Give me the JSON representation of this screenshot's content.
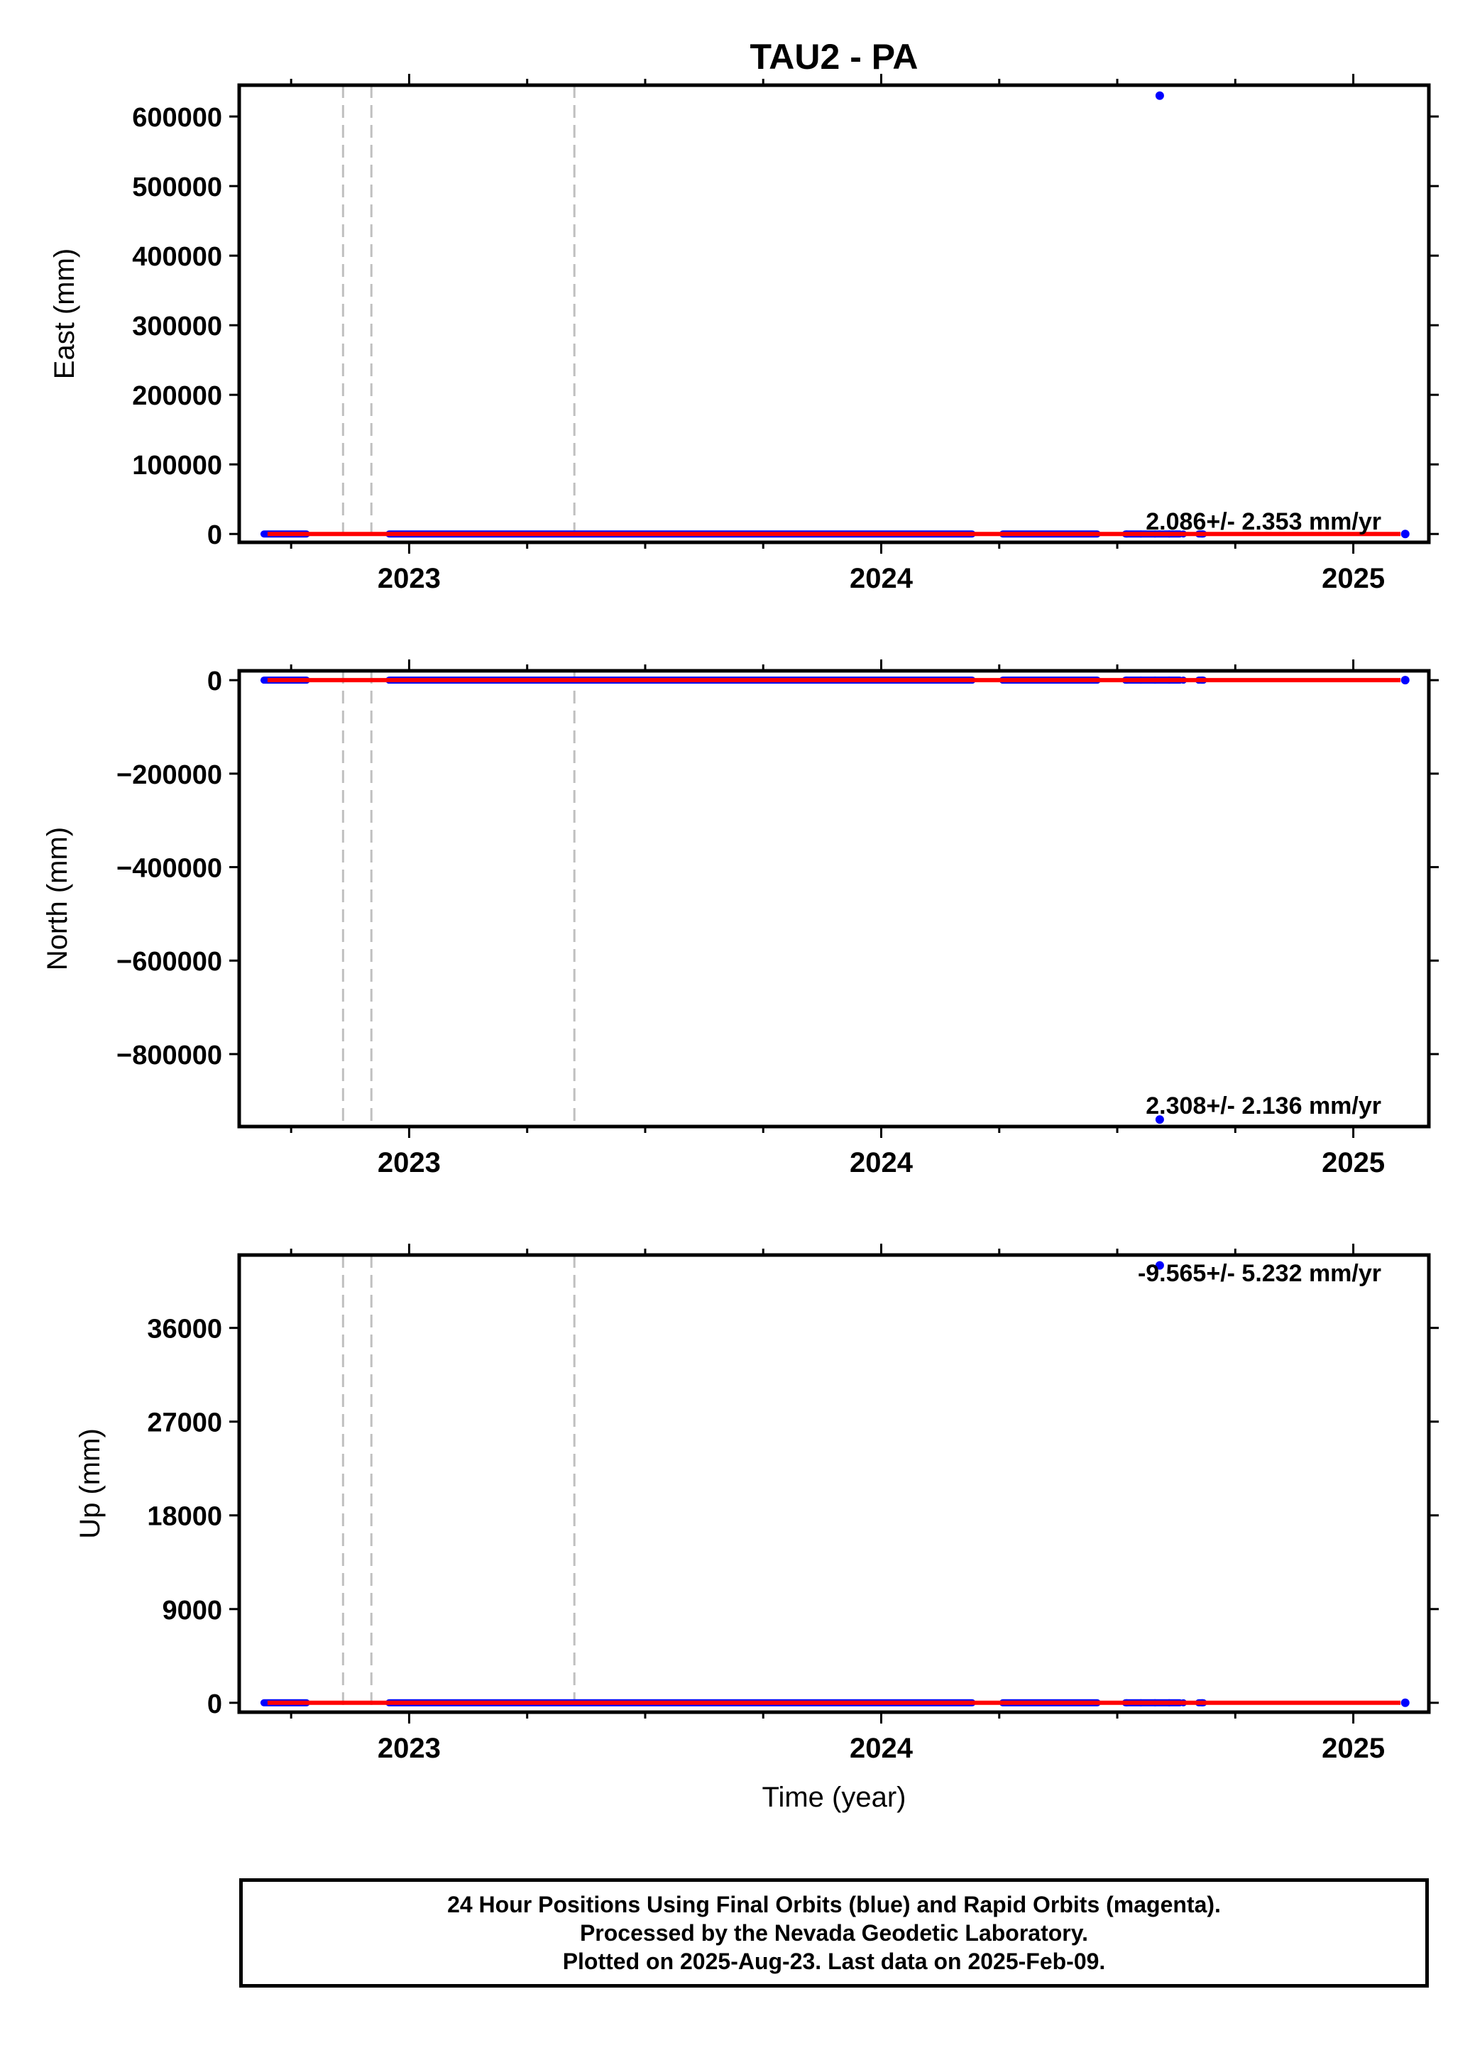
{
  "title": "TAU2 - PA",
  "xlabel": "Time (year)",
  "colors": {
    "final": "#0000ff",
    "rapid": "#ff00ff",
    "trend": "#ff0000",
    "event_line": "#c0c0c0"
  },
  "chart_data": [
    {
      "type": "scatter",
      "name": "east",
      "ylabel": "East (mm)",
      "xlim": [
        2022.64,
        2025.16
      ],
      "ylim": [
        -12000,
        645000
      ],
      "yticks": [
        0,
        100000,
        200000,
        300000,
        400000,
        500000,
        600000
      ],
      "ytick_labels": [
        "0",
        "100000",
        "200000",
        "300000",
        "400000",
        "500000",
        "600000"
      ],
      "xticks": [
        2023,
        2024,
        2025
      ],
      "xtick_labels": [
        "2023",
        "2024",
        "2025"
      ],
      "rate": "2.086+/- 2.353 mm/yr",
      "outliers": [
        {
          "x": 2024.59,
          "y": 630000
        }
      ],
      "trend": [
        [
          2022.7,
          0
        ],
        [
          2025.1,
          0
        ]
      ]
    },
    {
      "type": "scatter",
      "name": "north",
      "ylabel": "North (mm)",
      "xlim": [
        2022.64,
        2025.16
      ],
      "ylim": [
        -955000,
        20000
      ],
      "yticks": [
        -800000,
        -600000,
        -400000,
        -200000,
        0
      ],
      "ytick_labels": [
        "−800000",
        "−600000",
        "−400000",
        "−200000",
        "0"
      ],
      "xticks": [
        2023,
        2024,
        2025
      ],
      "xtick_labels": [
        "2023",
        "2024",
        "2025"
      ],
      "rate": "2.308+/- 2.136 mm/yr",
      "outliers": [
        {
          "x": 2024.59,
          "y": -940000
        }
      ],
      "trend": [
        [
          2022.7,
          0
        ],
        [
          2025.1,
          0
        ]
      ]
    },
    {
      "type": "scatter",
      "name": "up",
      "ylabel": "Up (mm)",
      "xlim": [
        2022.64,
        2025.16
      ],
      "ylim": [
        -900,
        43000
      ],
      "yticks": [
        0,
        9000,
        18000,
        27000,
        36000
      ],
      "ytick_labels": [
        "0",
        "9000",
        "18000",
        "27000",
        "36000"
      ],
      "xticks": [
        2023,
        2024,
        2025
      ],
      "xtick_labels": [
        "2023",
        "2024",
        "2025"
      ],
      "rate": "-9.565+/- 5.232 mm/yr",
      "outliers": [
        {
          "x": 2024.59,
          "y": 42000
        }
      ],
      "trend": [
        [
          2022.7,
          0
        ],
        [
          2025.1,
          0
        ]
      ]
    }
  ],
  "shared": {
    "minor_xticks": [
      2022.75,
      2023.25,
      2023.5,
      2023.75,
      2024.25,
      2024.5,
      2024.75
    ],
    "event_lines": [
      2022.86,
      2022.92,
      2023.35
    ],
    "data_segments": [
      [
        2022.685,
        2022.79
      ],
      [
        2022.95,
        2024.2
      ],
      [
        2024.25,
        2024.465
      ],
      [
        2024.51,
        2024.64
      ],
      [
        2024.665,
        2024.69
      ]
    ],
    "last_point_x": 2025.11
  },
  "footer": {
    "line1": "24 Hour Positions Using Final Orbits (blue) and Rapid Orbits (magenta).",
    "line2": "Processed by the Nevada Geodetic Laboratory.",
    "line3": "Plotted on 2025-Aug-23. Last data on 2025-Feb-09."
  }
}
